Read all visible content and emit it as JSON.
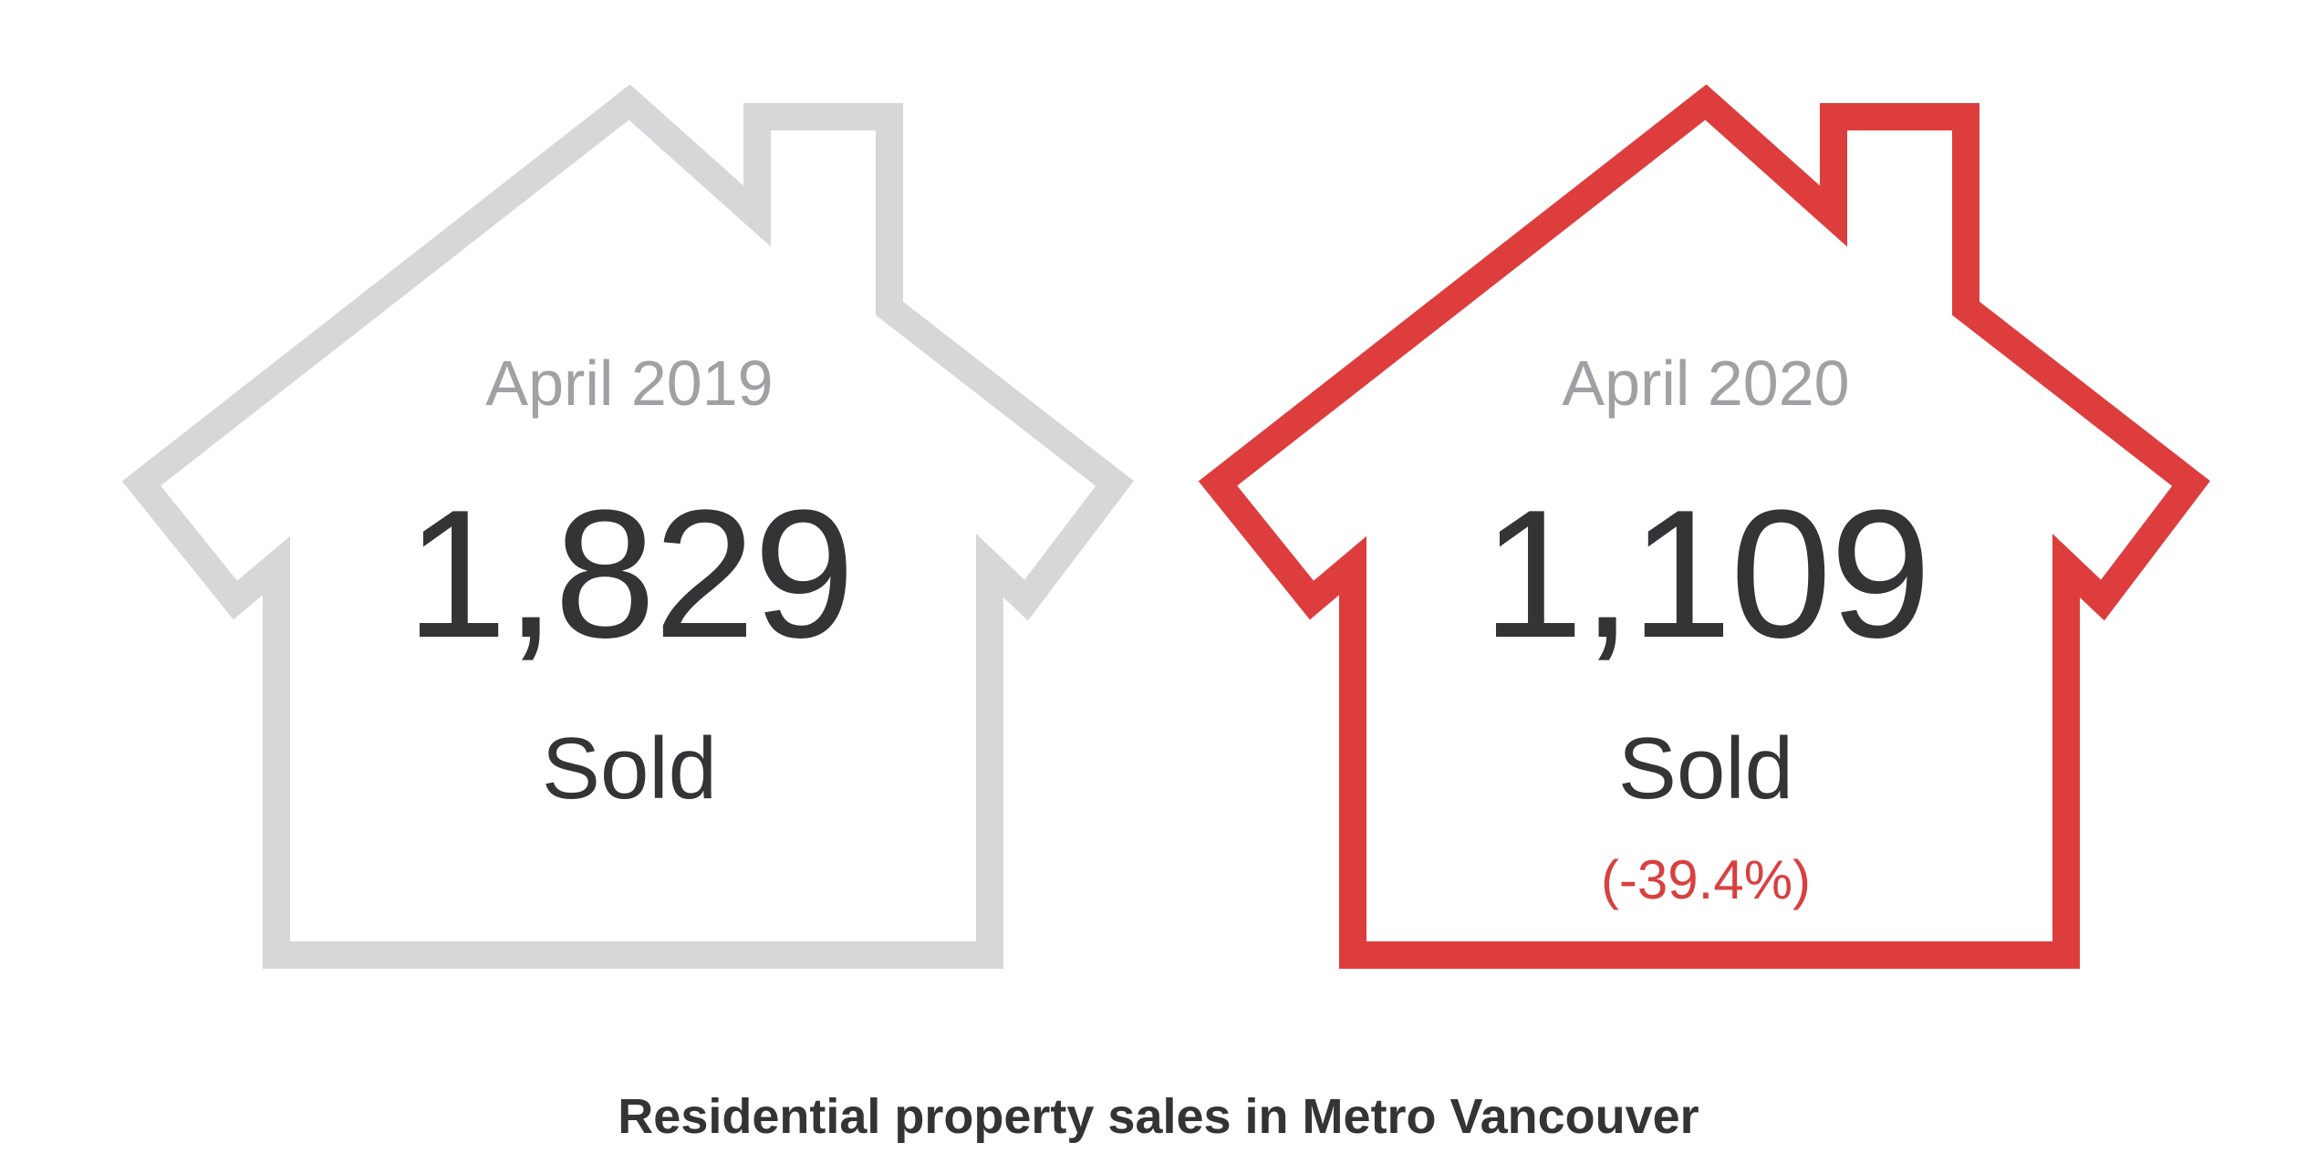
{
  "houses": [
    {
      "period": "April 2019",
      "value": "1,829",
      "unit": "Sold",
      "change": "",
      "outline_color": "#d6d7d9"
    },
    {
      "period": "April 2020",
      "value": "1,109",
      "unit": "Sold",
      "change": "(-39.4%)",
      "outline_color": "#de3d3d"
    }
  ],
  "caption": "Residential property sales in Metro Vancouver",
  "colors": {
    "period_text": "#9fa1a4",
    "value_text": "#323436",
    "change_text": "#d94040"
  }
}
